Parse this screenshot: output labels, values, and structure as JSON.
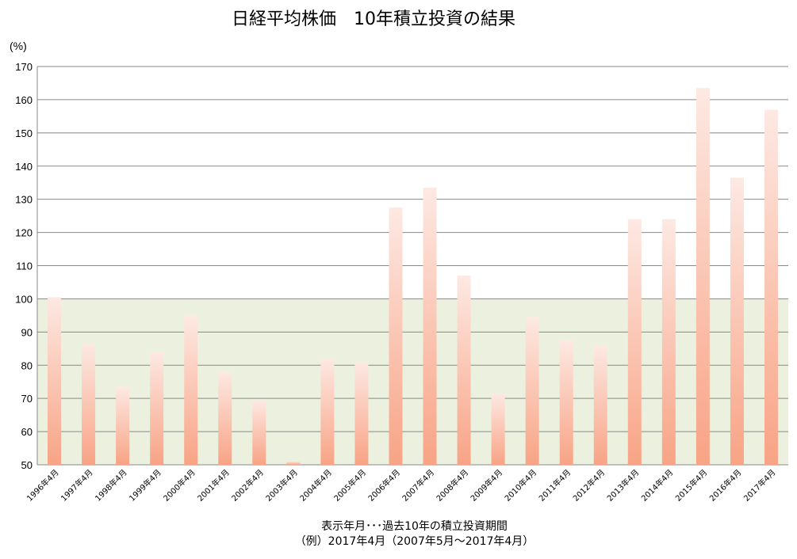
{
  "chart_data": {
    "type": "bar",
    "title": "日経平均株価　10年積立投資の結果",
    "ylabel": "(%)",
    "xlabel": "",
    "ylim": [
      50,
      170
    ],
    "yticks": [
      50,
      60,
      70,
      80,
      90,
      100,
      110,
      120,
      130,
      140,
      150,
      160,
      170
    ],
    "reference_band": [
      50,
      100
    ],
    "grid": true,
    "categories": [
      "1996年4月",
      "1997年4月",
      "1998年4月",
      "1999年4月",
      "2000年4月",
      "2001年4月",
      "2002年4月",
      "2003年4月",
      "2004年4月",
      "2005年4月",
      "2006年4月",
      "2007年4月",
      "2008年4月",
      "2009年4月",
      "2010年4月",
      "2011年4月",
      "2012年4月",
      "2013年4月",
      "2014年4月",
      "2015年4月",
      "2016年4月",
      "2017年4月"
    ],
    "values": [
      100.5,
      86.5,
      73.5,
      84,
      95,
      78,
      69.5,
      51,
      82,
      81,
      127.5,
      133.5,
      107,
      71.5,
      94.5,
      87.5,
      86,
      124,
      124,
      163.5,
      136.5,
      157
    ],
    "colors": {
      "bar_top": "#fde9e3",
      "bar_bottom": "#f8a385",
      "band": "#ebf1de",
      "grid": "#898989"
    }
  },
  "footnote": {
    "line1": "表示年月･･･過去10年の積立投資期間",
    "line2": "（例）2017年4月（2007年5月～2017年4月）"
  }
}
